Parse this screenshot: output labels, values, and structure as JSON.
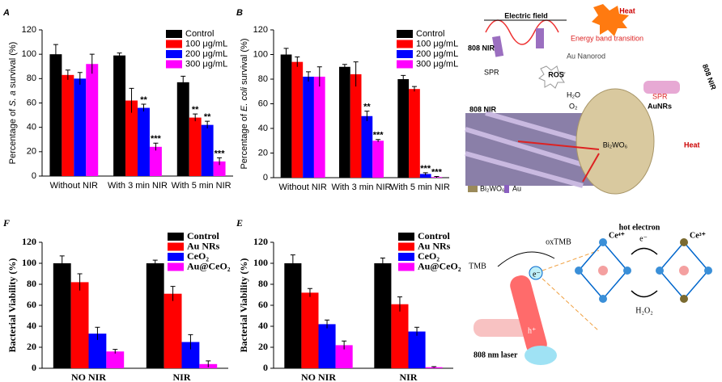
{
  "chart_data": [
    {
      "type": "bar",
      "panel": "A",
      "ylabel_parts": [
        "Percentage of ",
        "S. a",
        " survival (%)"
      ],
      "categories": [
        "Without NIR",
        "With 3 min NIR",
        "With 5 min NIR"
      ],
      "ylim": [
        0,
        120
      ],
      "yticks": [
        0,
        20,
        40,
        60,
        80,
        100,
        120
      ],
      "series": [
        {
          "name": "Control",
          "color": "#000000",
          "values": [
            100,
            99,
            77
          ],
          "errors": [
            8,
            2,
            5
          ],
          "significance": [
            null,
            null,
            null
          ]
        },
        {
          "name": "100 μg/mL",
          "color": "#ff0000",
          "values": [
            83,
            62,
            48
          ],
          "errors": [
            4,
            10,
            3
          ],
          "significance": [
            null,
            null,
            "**"
          ]
        },
        {
          "name": "200 μg/mL",
          "color": "#0000ff",
          "values": [
            80,
            56,
            42
          ],
          "errors": [
            5,
            3,
            3
          ],
          "significance": [
            null,
            "**",
            "**"
          ]
        },
        {
          "name": "300 μg/mL",
          "color": "#ff00ff",
          "values": [
            92,
            24,
            12
          ],
          "errors": [
            8,
            3,
            3
          ],
          "significance": [
            null,
            "***",
            "***"
          ]
        }
      ]
    },
    {
      "type": "bar",
      "panel": "B",
      "ylabel_parts": [
        "Percentage of ",
        "E. coli",
        " survival (%)"
      ],
      "categories": [
        "Without NIR",
        "With 3 min NIR",
        "With 5 min NIR"
      ],
      "ylim": [
        0,
        120
      ],
      "yticks": [
        0,
        20,
        40,
        60,
        80,
        100,
        120
      ],
      "series": [
        {
          "name": "Control",
          "color": "#000000",
          "values": [
            100,
            90,
            80
          ],
          "errors": [
            5,
            2,
            3
          ],
          "significance": [
            null,
            null,
            null
          ]
        },
        {
          "name": "100 μg/mL",
          "color": "#ff0000",
          "values": [
            94,
            84,
            72
          ],
          "errors": [
            4,
            10,
            2
          ],
          "significance": [
            null,
            null,
            null
          ]
        },
        {
          "name": "200 μg/mL",
          "color": "#0000ff",
          "values": [
            82,
            50,
            3
          ],
          "errors": [
            4,
            4,
            1
          ],
          "significance": [
            null,
            "**",
            "***"
          ]
        },
        {
          "name": "300 μg/mL",
          "color": "#ff00ff",
          "values": [
            82,
            30,
            0.5
          ],
          "errors": [
            8,
            1,
            0.5
          ],
          "significance": [
            null,
            "***",
            "***"
          ]
        }
      ]
    },
    {
      "type": "bar",
      "panel": "F",
      "ylabel_parts": [
        "Bacterial  Viability (%)"
      ],
      "categories": [
        "NO NIR",
        "NIR"
      ],
      "ylim": [
        0,
        120
      ],
      "yticks": [
        0,
        20,
        40,
        60,
        80,
        100,
        120
      ],
      "series": [
        {
          "name": "Control",
          "color": "#000000",
          "values": [
            100,
            100
          ],
          "errors": [
            7,
            3
          ],
          "significance": [
            null,
            null
          ]
        },
        {
          "name": "Au NRs",
          "color": "#ff0000",
          "values": [
            82,
            71
          ],
          "errors": [
            8,
            7
          ],
          "significance": [
            null,
            null
          ]
        },
        {
          "name": "CeO₂",
          "color": "#0000ff",
          "values": [
            33,
            25
          ],
          "errors": [
            6,
            7
          ],
          "significance": [
            null,
            null
          ]
        },
        {
          "name": "Au@CeO₂",
          "color": "#ff00ff",
          "values": [
            16,
            4
          ],
          "errors": [
            2,
            3
          ],
          "significance": [
            null,
            null
          ]
        }
      ]
    },
    {
      "type": "bar",
      "panel": "E",
      "ylabel_parts": [
        "Bacterial  Viability (%)"
      ],
      "categories": [
        "NO NIR",
        "NIR"
      ],
      "ylim": [
        0,
        120
      ],
      "yticks": [
        0,
        20,
        40,
        60,
        80,
        100,
        120
      ],
      "series": [
        {
          "name": "Control",
          "color": "#000000",
          "values": [
            100,
            100
          ],
          "errors": [
            8,
            5
          ],
          "significance": [
            null,
            null
          ]
        },
        {
          "name": "Au NRs",
          "color": "#ff0000",
          "values": [
            72,
            61
          ],
          "errors": [
            4,
            7
          ],
          "significance": [
            null,
            null
          ]
        },
        {
          "name": "CeO₂",
          "color": "#0000ff",
          "values": [
            42,
            35
          ],
          "errors": [
            4,
            4
          ],
          "significance": [
            null,
            null
          ]
        },
        {
          "name": "Au@CeO₂",
          "color": "#ff00ff",
          "values": [
            22,
            1
          ],
          "errors": [
            4,
            0.5
          ],
          "significance": [
            null,
            null
          ]
        }
      ]
    }
  ],
  "panel_c": {
    "texts": [
      "Electric field",
      "808 NIR",
      "Energy band transition",
      "Au Nanorod",
      "SPR",
      "Heat",
      "ROS",
      "H₂O",
      "O₂",
      "AuNRs",
      "SPR",
      "Bi₂WO₆",
      "808 NIR",
      "808 NIR",
      "Heat",
      "Bi₂WO₆",
      "Au"
    ]
  },
  "panel_d": {
    "texts": [
      "oxTMB",
      "TMB",
      "hot electron",
      "e⁻",
      "Ce⁴⁺",
      "Ce³⁺",
      "H₂O₂",
      "808 nm laser",
      "h⁺",
      "e⁻"
    ]
  }
}
